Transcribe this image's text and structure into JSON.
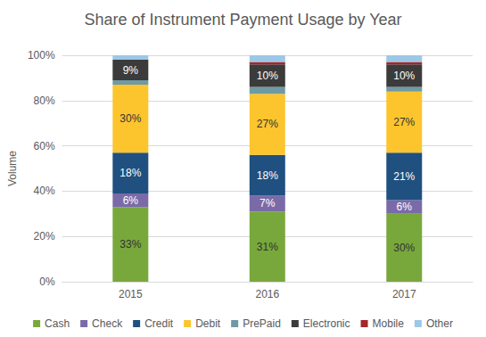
{
  "chart_data": {
    "type": "bar",
    "title": "Share of Instrument Payment Usage by Year",
    "y_label": "Volume",
    "categories": [
      "2015",
      "2016",
      "2017"
    ],
    "stacked": true,
    "grid": true,
    "legend": "bottom",
    "ylim": [
      0,
      100
    ],
    "yticks": [
      {
        "value": 0,
        "label": "0%"
      },
      {
        "value": 20,
        "label": "20%"
      },
      {
        "value": 40,
        "label": "40%"
      },
      {
        "value": 60,
        "label": "60%"
      },
      {
        "value": 80,
        "label": "80%"
      },
      {
        "value": 100,
        "label": "100%"
      }
    ],
    "series": [
      {
        "name": "Cash",
        "color": "#78a83b",
        "values": [
          33,
          31,
          30
        ],
        "data_labels": true,
        "value_labels": [
          "33%",
          "31%",
          "30%"
        ]
      },
      {
        "name": "Check",
        "color": "#7b6aa8",
        "values": [
          6,
          7,
          6
        ],
        "data_labels": true,
        "value_labels": [
          "6%",
          "7%",
          "6%"
        ]
      },
      {
        "name": "Credit",
        "color": "#1f5080",
        "values": [
          18,
          18,
          21
        ],
        "data_labels": true,
        "value_labels": [
          "18%",
          "18%",
          "21%"
        ]
      },
      {
        "name": "Debit",
        "color": "#fcc52e",
        "values": [
          30,
          27,
          27
        ],
        "data_labels": true,
        "value_labels": [
          "30%",
          "27%",
          "27%"
        ]
      },
      {
        "name": "PrePaid",
        "color": "#6f9aa3",
        "values": [
          2,
          3,
          2
        ],
        "data_labels": false
      },
      {
        "name": "Electronic",
        "color": "#3b3b3b",
        "values": [
          9,
          10,
          10
        ],
        "data_labels": true,
        "value_labels": [
          "9%",
          "10%",
          "10%"
        ]
      },
      {
        "name": "Mobile",
        "color": "#a3282b",
        "values": [
          0,
          1,
          1
        ],
        "data_labels": false
      },
      {
        "name": "Other",
        "color": "#9cc8e8",
        "values": [
          2,
          3,
          3
        ],
        "data_labels": false
      }
    ]
  }
}
